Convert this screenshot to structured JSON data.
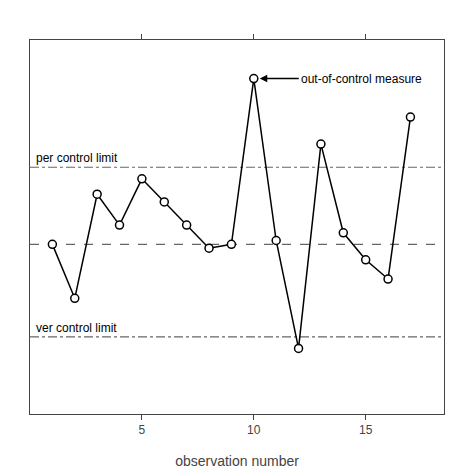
{
  "chart_data": {
    "type": "line",
    "x": [
      1,
      2,
      3,
      4,
      5,
      6,
      7,
      8,
      9,
      10,
      11,
      12,
      13,
      14,
      15,
      16,
      17
    ],
    "values": [
      3.2,
      1.8,
      4.5,
      3.7,
      4.9,
      4.3,
      3.7,
      3.1,
      3.2,
      7.5,
      3.3,
      0.5,
      5.8,
      3.5,
      2.8,
      2.3,
      6.5
    ],
    "color": "#000000",
    "marker": "open circle",
    "x_label": "observation number",
    "xlim": [
      0,
      18.5
    ],
    "xticks": [
      5,
      10,
      15
    ],
    "ylim": [
      -1.2,
      8.5
    ],
    "yticks": [],
    "tick_labels": "x",
    "grid": false,
    "reference_lines": [
      {
        "value": 3.2,
        "line_style": "dashed",
        "color": "#666666"
      },
      {
        "value": 5.2,
        "line_style": "dashdot",
        "color": "#666666",
        "label": "per control limit"
      },
      {
        "value": 0.8,
        "line_style": "dashdot",
        "color": "#666666",
        "label": "ver control limit"
      }
    ],
    "annotations": [
      {
        "text": "out-of-control measure",
        "x": 10,
        "y": 7.5,
        "arrow": true
      }
    ]
  }
}
